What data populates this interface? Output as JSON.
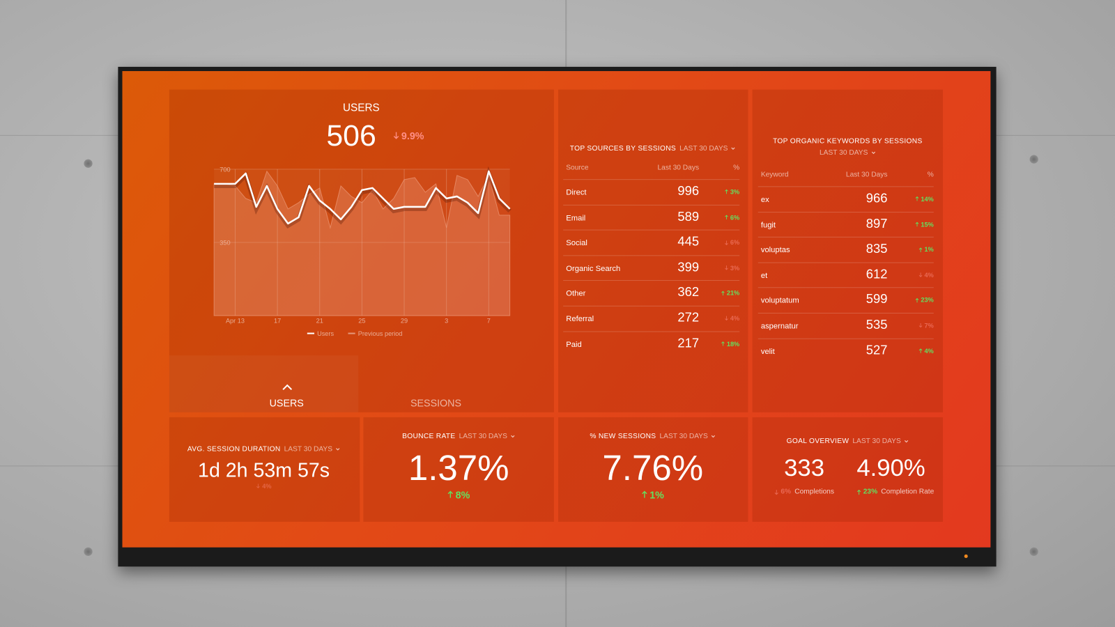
{
  "users_panel": {
    "title": "USERS",
    "value": 506,
    "change": "9.9%",
    "direction": "down",
    "tabs": [
      "USERS",
      "SESSIONS"
    ]
  },
  "chart_data": {
    "type": "line",
    "categories": [
      null,
      null,
      "Apr 13",
      null,
      null,
      null,
      "17",
      null,
      null,
      null,
      "21",
      null,
      null,
      null,
      "25",
      null,
      null,
      null,
      "29",
      null,
      null,
      null,
      "3",
      null,
      null,
      null,
      "7",
      null,
      null
    ],
    "series": [
      {
        "name": "Users",
        "color": "#ffffff",
        "values": [
          630,
          630,
          630,
          680,
          520,
          620,
          510,
          440,
          470,
          620,
          550,
          510,
          460,
          520,
          600,
          610,
          560,
          510,
          520,
          520,
          520,
          610,
          560,
          570,
          540,
          490,
          690,
          560,
          510
        ]
      },
      {
        "name": "Previous period",
        "color": "#f0a080",
        "area": true,
        "values": [
          630,
          630,
          620,
          560,
          540,
          690,
          620,
          510,
          540,
          580,
          610,
          420,
          620,
          570,
          540,
          600,
          510,
          560,
          650,
          660,
          590,
          630,
          420,
          670,
          650,
          570,
          670,
          480,
          480
        ]
      }
    ],
    "ylim": [
      0,
      700
    ],
    "yticks": [
      350,
      700
    ],
    "grid": true
  },
  "sources": {
    "title": "TOP SOURCES BY SESSIONS",
    "period": "LAST 30 DAYS",
    "columns": [
      "Source",
      "Last 30 Days",
      "%"
    ],
    "rows": [
      {
        "label": "Direct",
        "value": 996,
        "change": "3%",
        "direction": "up"
      },
      {
        "label": "Email",
        "value": 589,
        "change": "6%",
        "direction": "up"
      },
      {
        "label": "Social",
        "value": 445,
        "change": "6%",
        "direction": "down"
      },
      {
        "label": "Organic Search",
        "value": 399,
        "change": "3%",
        "direction": "down"
      },
      {
        "label": "Other",
        "value": 362,
        "change": "21%",
        "direction": "up"
      },
      {
        "label": "Referral",
        "value": 272,
        "change": "4%",
        "direction": "down"
      },
      {
        "label": "Paid",
        "value": 217,
        "change": "18%",
        "direction": "up"
      }
    ]
  },
  "keywords": {
    "title": "TOP ORGANIC KEYWORDS BY SESSIONS",
    "period": "LAST 30 DAYS",
    "columns": [
      "Keyword",
      "Last 30 Days",
      "%"
    ],
    "rows": [
      {
        "label": "ex",
        "value": 966,
        "change": "14%",
        "direction": "up"
      },
      {
        "label": "fugit",
        "value": 897,
        "change": "15%",
        "direction": "up"
      },
      {
        "label": "voluptas",
        "value": 835,
        "change": "1%",
        "direction": "up"
      },
      {
        "label": "et",
        "value": 612,
        "change": "4%",
        "direction": "down"
      },
      {
        "label": "voluptatum",
        "value": 599,
        "change": "23%",
        "direction": "up"
      },
      {
        "label": "aspernatur",
        "value": 535,
        "change": "7%",
        "direction": "down"
      },
      {
        "label": "velit",
        "value": 527,
        "change": "4%",
        "direction": "up"
      }
    ]
  },
  "kpis": [
    {
      "title": "AVG. SESSION DURATION",
      "period": "LAST 30 DAYS",
      "value": "1d 2h 53m 57s",
      "change": "4%",
      "direction": "down"
    },
    {
      "title": "BOUNCE RATE",
      "period": "LAST 30 DAYS",
      "value": "1.37%",
      "change": "8%",
      "direction": "up"
    },
    {
      "title": "% NEW SESSIONS",
      "period": "LAST 30 DAYS",
      "value": "7.76%",
      "change": "1%",
      "direction": "up"
    }
  ],
  "goal": {
    "title": "GOAL OVERVIEW",
    "period": "LAST 30 DAYS",
    "metrics": [
      {
        "value": "333",
        "change": "6%",
        "direction": "down",
        "label": "Completions"
      },
      {
        "value": "4.90%",
        "change": "23%",
        "direction": "up",
        "label": "Completion Rate"
      }
    ]
  }
}
